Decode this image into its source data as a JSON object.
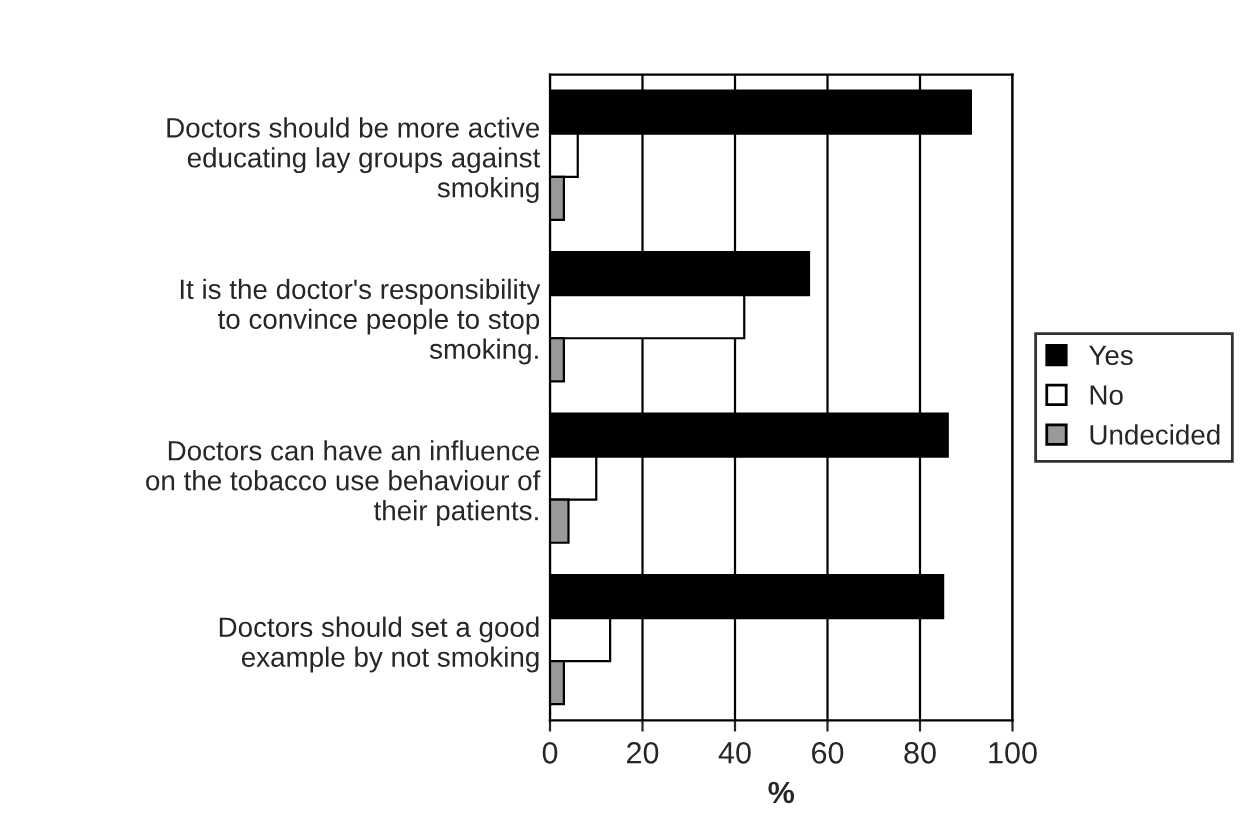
{
  "chart_data": {
    "type": "bar",
    "orientation": "horizontal",
    "xlabel": "%",
    "categories": [
      "Doctors should be more active\neducating lay groups against\nsmoking",
      "It is the doctor's responsibility\nto convince people to stop\nsmoking.",
      "Doctors can have an influence\non the tobacco use behaviour of\ntheir patients.",
      "Doctors should set a good\nexample by not smoking"
    ],
    "series": [
      {
        "name": "Yes",
        "color": "#000000",
        "values": [
          91,
          56,
          86,
          85
        ]
      },
      {
        "name": "No",
        "color": "#ffffff",
        "values": [
          6,
          42,
          10,
          13
        ]
      },
      {
        "name": "Undecided",
        "color": "#999999",
        "values": [
          3,
          3,
          4,
          3
        ]
      }
    ],
    "xlim": [
      0,
      100
    ],
    "xticks": [
      0,
      20,
      40,
      60,
      80,
      100
    ],
    "grid": "x",
    "legend": "right"
  }
}
